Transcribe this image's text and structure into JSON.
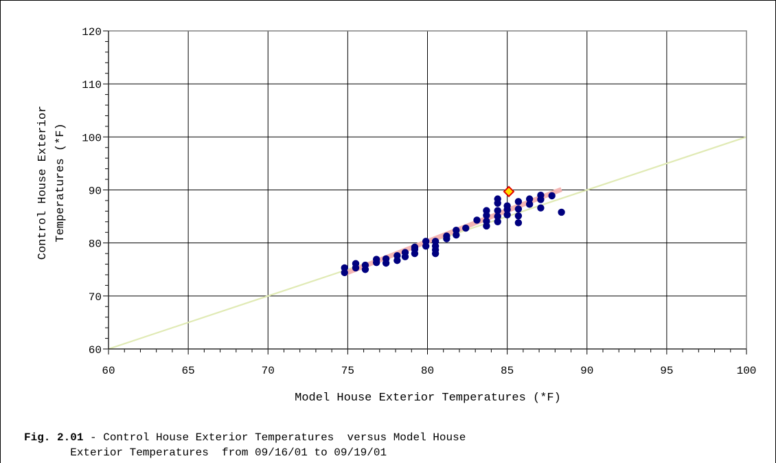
{
  "chart_data": {
    "type": "scatter",
    "xlabel": "Model House Exterior Temperatures (*F)",
    "ylabel_line1": "Control House Exterior",
    "ylabel_line2": "Temperatures   (*F)",
    "xlim": [
      60,
      100
    ],
    "ylim": [
      60,
      120
    ],
    "xticks": [
      "60",
      "65",
      "70",
      "75",
      "80",
      "85",
      "90",
      "95",
      "100"
    ],
    "yticks": [
      "60",
      "70",
      "80",
      "90",
      "100",
      "110",
      "120"
    ],
    "grid": true,
    "legend": "none",
    "series": [
      {
        "kind": "points",
        "color": "#00007f",
        "points": [
          [
            74.8,
            74.4
          ],
          [
            74.8,
            75.3
          ],
          [
            75.5,
            75.3
          ],
          [
            75.5,
            76.1
          ],
          [
            76.1,
            75.0
          ],
          [
            76.1,
            75.8
          ],
          [
            76.8,
            76.3
          ],
          [
            76.8,
            76.9
          ],
          [
            77.4,
            76.2
          ],
          [
            77.4,
            77.0
          ],
          [
            78.1,
            76.7
          ],
          [
            78.1,
            77.6
          ],
          [
            78.6,
            77.4
          ],
          [
            78.6,
            78.2
          ],
          [
            79.2,
            78.0
          ],
          [
            79.2,
            78.8
          ],
          [
            79.2,
            79.2
          ],
          [
            79.9,
            79.4
          ],
          [
            79.9,
            80.3
          ],
          [
            80.5,
            78.0
          ],
          [
            80.5,
            78.7
          ],
          [
            80.5,
            79.4
          ],
          [
            80.5,
            80.3
          ],
          [
            81.2,
            80.8
          ],
          [
            81.2,
            81.3
          ],
          [
            81.8,
            81.5
          ],
          [
            81.8,
            82.4
          ],
          [
            82.4,
            82.8
          ],
          [
            83.1,
            84.3
          ],
          [
            83.7,
            83.2
          ],
          [
            83.7,
            84.1
          ],
          [
            83.7,
            85.2
          ],
          [
            83.7,
            86.1
          ],
          [
            84.4,
            84.0
          ],
          [
            84.4,
            85.0
          ],
          [
            84.4,
            86.1
          ],
          [
            84.4,
            87.5
          ],
          [
            84.4,
            88.3
          ],
          [
            85.0,
            85.3
          ],
          [
            85.0,
            86.3
          ],
          [
            85.0,
            87.0
          ],
          [
            85.7,
            83.8
          ],
          [
            85.7,
            85.1
          ],
          [
            85.7,
            86.4
          ],
          [
            85.7,
            87.8
          ],
          [
            86.4,
            87.3
          ],
          [
            86.4,
            88.3
          ],
          [
            87.1,
            86.6
          ],
          [
            87.1,
            88.2
          ],
          [
            87.1,
            89.0
          ],
          [
            87.8,
            88.9
          ],
          [
            88.4,
            85.8
          ]
        ]
      },
      {
        "kind": "fit-line",
        "color": "#f4b6b4",
        "from": [
          74.8,
          74.2
        ],
        "to": [
          88.4,
          90.1
        ]
      },
      {
        "kind": "reference-line",
        "color": "#e0eab4",
        "from": [
          60,
          60
        ],
        "to": [
          100,
          100
        ]
      },
      {
        "kind": "highlight-point",
        "fill": "#ffe000",
        "stroke": "#e00000",
        "point": [
          85.1,
          89.7
        ]
      }
    ]
  },
  "caption": {
    "fig_label": "Fig. 2.01",
    "line1": " - Control House Exterior Temperatures  versus Model House",
    "line2": "       Exterior Temperatures  from 09/16/01 to 09/19/01"
  }
}
